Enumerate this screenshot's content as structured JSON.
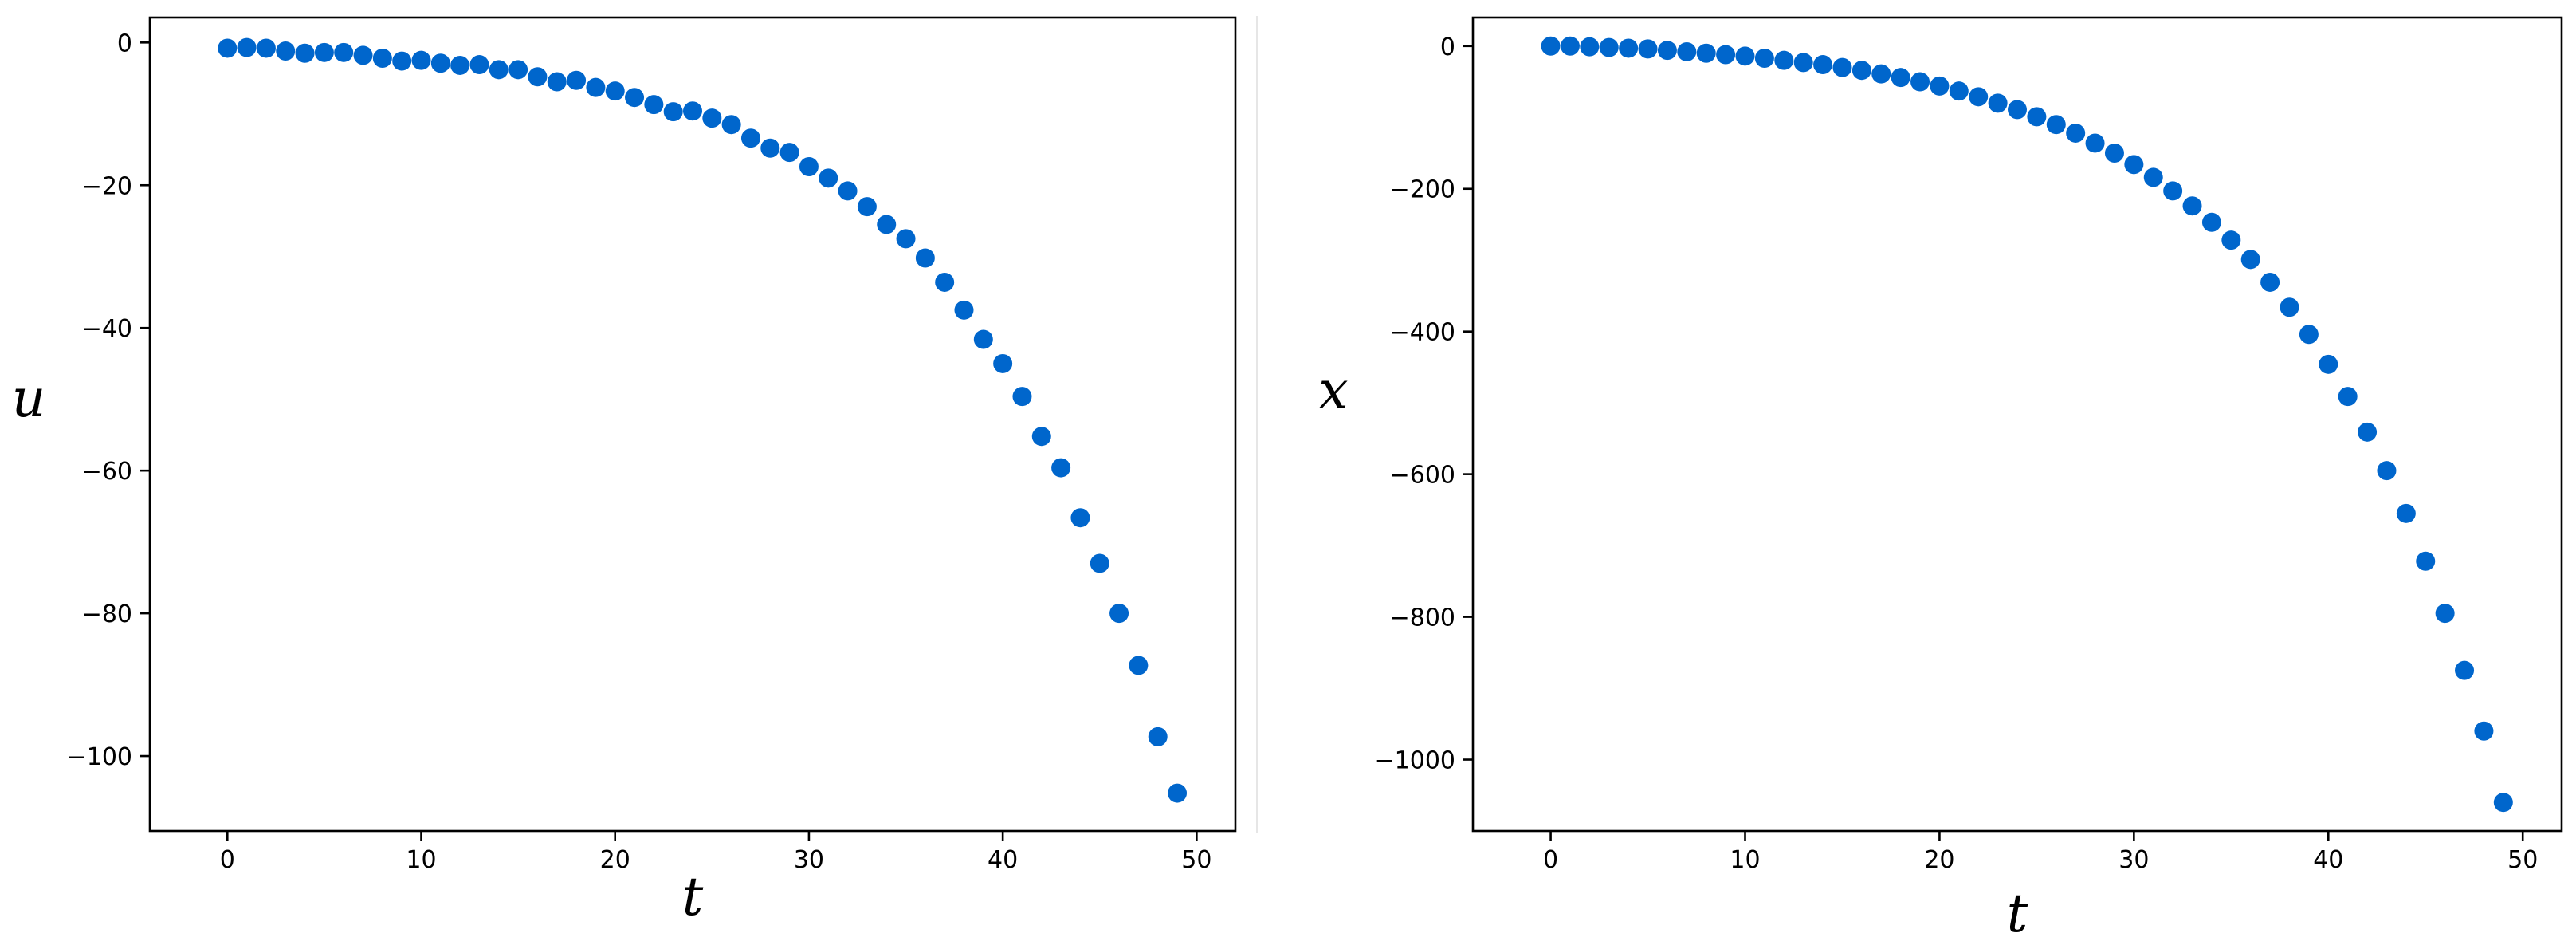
{
  "chart_data": [
    {
      "type": "scatter",
      "xlabel": "t",
      "ylabel": "u",
      "xlim": [
        -4,
        52
      ],
      "ylim": [
        -110.5,
        3.5
      ],
      "xticks": [
        0,
        10,
        20,
        30,
        40,
        50
      ],
      "yticks": [
        0,
        -20,
        -40,
        -60,
        -80,
        -100
      ],
      "xtick_labels": [
        "0",
        "10",
        "20",
        "30",
        "40",
        "50"
      ],
      "ytick_labels": [
        "0",
        "−20",
        "−40",
        "−60",
        "−80",
        "−100"
      ],
      "grid": false,
      "marker_color": "#0066cc",
      "x": [
        0,
        1,
        2,
        3,
        4,
        5,
        6,
        7,
        8,
        9,
        10,
        11,
        12,
        13,
        14,
        15,
        16,
        17,
        18,
        19,
        20,
        21,
        22,
        23,
        24,
        25,
        26,
        27,
        28,
        29,
        30,
        31,
        32,
        33,
        34,
        35,
        36,
        37,
        38,
        39,
        40,
        41,
        42,
        43,
        44,
        45,
        46,
        47,
        48,
        49
      ],
      "y": [
        -0.8,
        -0.7,
        -0.8,
        -1.2,
        -1.5,
        -1.4,
        -1.4,
        -1.8,
        -2.2,
        -2.6,
        -2.5,
        -2.9,
        -3.2,
        -3.1,
        -3.8,
        -3.8,
        -4.8,
        -5.5,
        -5.3,
        -6.3,
        -6.8,
        -7.7,
        -8.7,
        -9.7,
        -9.6,
        -10.6,
        -11.5,
        -13.4,
        -14.8,
        -15.4,
        -17.4,
        -19.0,
        -20.8,
        -23.0,
        -25.5,
        -27.5,
        -30.2,
        -33.6,
        -37.5,
        -41.6,
        -45.0,
        -49.6,
        -55.2,
        -59.6,
        -66.6,
        -73.0,
        -80.0,
        -87.3,
        -97.3,
        -105.2
      ]
    },
    {
      "type": "scatter",
      "xlabel": "t",
      "ylabel": "x",
      "xlim": [
        -4,
        52
      ],
      "ylim": [
        -1100,
        40
      ],
      "xticks": [
        0,
        10,
        20,
        30,
        40,
        50
      ],
      "yticks": [
        0,
        -200,
        -400,
        -600,
        -800,
        -1000
      ],
      "xtick_labels": [
        "0",
        "10",
        "20",
        "30",
        "40",
        "50"
      ],
      "ytick_labels": [
        "0",
        "−200",
        "−400",
        "−600",
        "−800",
        "−1000"
      ],
      "grid": false,
      "marker_color": "#0066cc",
      "x": [
        0,
        1,
        2,
        3,
        4,
        5,
        6,
        7,
        8,
        9,
        10,
        11,
        12,
        13,
        14,
        15,
        16,
        17,
        18,
        19,
        20,
        21,
        22,
        23,
        24,
        25,
        26,
        27,
        28,
        29,
        30,
        31,
        32,
        33,
        34,
        35,
        36,
        37,
        38,
        39,
        40,
        41,
        42,
        43,
        44,
        45,
        46,
        47,
        48,
        49
      ],
      "y": [
        0,
        0,
        -1,
        -2,
        -3,
        -4,
        -6,
        -8,
        -10,
        -12,
        -14,
        -17,
        -20,
        -23,
        -26,
        -30,
        -34,
        -39,
        -44,
        -50,
        -56,
        -63,
        -71,
        -80,
        -89,
        -99,
        -110,
        -122,
        -136,
        -150,
        -166,
        -184,
        -203,
        -224,
        -247,
        -272,
        -299,
        -331,
        -366,
        -404,
        -446,
        -491,
        -541,
        -595,
        -655,
        -722,
        -795,
        -875,
        -960,
        -1060
      ]
    }
  ]
}
